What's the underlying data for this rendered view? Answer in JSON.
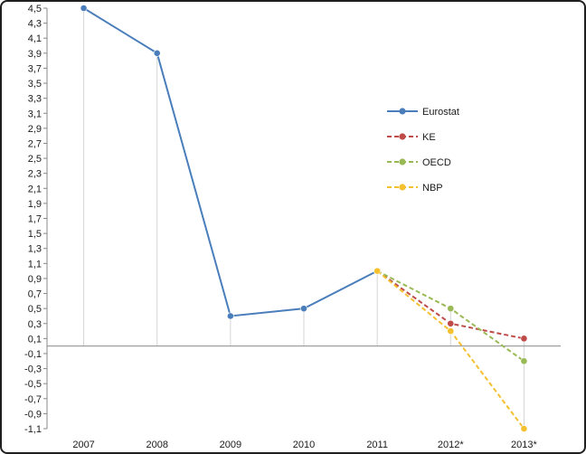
{
  "chart_data": {
    "type": "line",
    "title": "",
    "xlabel": "",
    "ylabel": "",
    "categories": [
      "2007",
      "2008",
      "2009",
      "2010",
      "2011",
      "2012*",
      "2013*"
    ],
    "ylim": [
      -1.1,
      4.5
    ],
    "y_tick_step": 0.2,
    "y_ticks": [
      "4,5",
      "4,3",
      "4,1",
      "3,9",
      "3,7",
      "3,5",
      "3,3",
      "3,1",
      "2,9",
      "2,7",
      "2,5",
      "2,3",
      "2,1",
      "1,9",
      "1,7",
      "1,5",
      "1,3",
      "1,1",
      "0,9",
      "0,7",
      "0,5",
      "0,3",
      "0,1",
      "-0,1",
      "-0,3",
      "-0,5",
      "-0,7",
      "-0,9",
      "-1,1"
    ],
    "grid": "vertical drop lines",
    "legend_position": "right",
    "series": [
      {
        "name": "Eurostat",
        "color": "#4a7ebb",
        "style": "solid",
        "values": [
          4.5,
          3.9,
          0.4,
          0.5,
          1.0,
          null,
          null
        ]
      },
      {
        "name": "KE",
        "color": "#be4b48",
        "style": "dashed",
        "values": [
          null,
          null,
          null,
          null,
          1.0,
          0.3,
          0.1
        ]
      },
      {
        "name": "OECD",
        "color": "#98b954",
        "style": "dashed",
        "values": [
          null,
          null,
          null,
          null,
          1.0,
          0.5,
          -0.2
        ]
      },
      {
        "name": "NBP",
        "color": "#f5c02f",
        "style": "dashed",
        "values": [
          null,
          null,
          null,
          null,
          1.0,
          0.2,
          -1.1
        ]
      }
    ]
  }
}
